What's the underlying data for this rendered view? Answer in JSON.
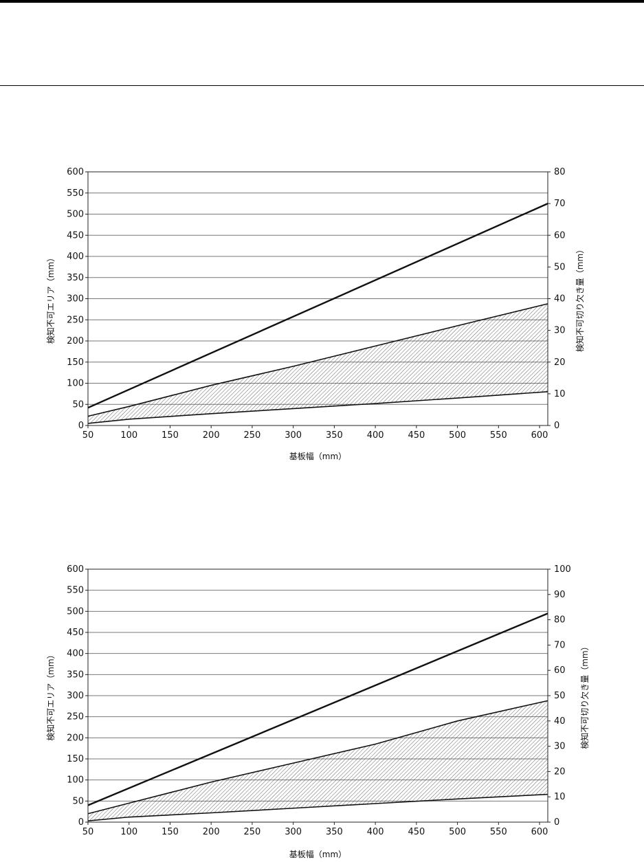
{
  "chart_data": [
    {
      "type": "line",
      "xlabel": "基板幅（mm）",
      "ylabel": "検知不可エリア（mm）",
      "y2label": "検知不可切り欠き量（mm）",
      "x_ticks": [
        50,
        100,
        150,
        200,
        250,
        300,
        350,
        400,
        450,
        500,
        550,
        600
      ],
      "y_ticks": [
        0,
        50,
        100,
        150,
        200,
        250,
        300,
        350,
        400,
        450,
        500,
        550,
        600
      ],
      "y2_ticks": [
        0,
        10,
        20,
        30,
        40,
        50,
        60,
        70,
        80
      ],
      "xlim": [
        50,
        610
      ],
      "ylim": [
        0,
        600
      ],
      "y2lim": [
        0,
        80
      ],
      "grid": "horizontal",
      "series": [
        {
          "axis": "left",
          "x": [
            50,
            610
          ],
          "values": [
            42,
            525
          ],
          "style": "thick"
        },
        {
          "axis": "left",
          "x": [
            50,
            100,
            200,
            300,
            400,
            500,
            610
          ],
          "values": [
            22,
            45,
            95,
            140,
            188,
            236,
            288
          ],
          "style": "band-upper"
        },
        {
          "axis": "left",
          "x": [
            50,
            100,
            200,
            300,
            400,
            500,
            610
          ],
          "values": [
            5,
            15,
            28,
            40,
            52,
            65,
            80
          ],
          "style": "band-lower"
        }
      ]
    },
    {
      "type": "line",
      "xlabel": "基板幅（mm）",
      "ylabel": "検知不可エリア（mm）",
      "y2label": "検知不可切り欠き量（mm）",
      "x_ticks": [
        50,
        100,
        150,
        200,
        250,
        300,
        350,
        400,
        450,
        500,
        550,
        600
      ],
      "y_ticks": [
        0,
        50,
        100,
        150,
        200,
        250,
        300,
        350,
        400,
        450,
        500,
        550,
        600
      ],
      "y2_ticks": [
        0,
        10,
        20,
        30,
        40,
        50,
        60,
        70,
        80,
        90,
        100
      ],
      "xlim": [
        50,
        610
      ],
      "ylim": [
        0,
        600
      ],
      "y2lim": [
        0,
        100
      ],
      "grid": "horizontal",
      "series": [
        {
          "axis": "left",
          "x": [
            50,
            610
          ],
          "values": [
            40,
            495
          ],
          "style": "thick"
        },
        {
          "axis": "left",
          "x": [
            50,
            100,
            200,
            300,
            400,
            500,
            610
          ],
          "values": [
            20,
            45,
            95,
            140,
            185,
            240,
            288
          ],
          "style": "band-upper"
        },
        {
          "axis": "left",
          "x": [
            50,
            100,
            200,
            300,
            400,
            500,
            610
          ],
          "values": [
            3,
            12,
            22,
            33,
            44,
            55,
            66
          ],
          "style": "band-lower"
        }
      ]
    }
  ]
}
